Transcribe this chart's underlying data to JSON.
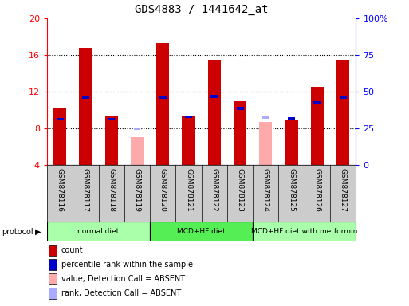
{
  "title": "GDS4883 / 1441642_at",
  "samples": [
    "GSM878116",
    "GSM878117",
    "GSM878118",
    "GSM878119",
    "GSM878120",
    "GSM878121",
    "GSM878122",
    "GSM878123",
    "GSM878124",
    "GSM878125",
    "GSM878126",
    "GSM878127"
  ],
  "count_values": [
    10.3,
    16.8,
    9.3,
    null,
    17.3,
    9.3,
    15.5,
    11.0,
    null,
    9.0,
    12.5,
    15.5
  ],
  "absent_value_values": [
    null,
    null,
    null,
    7.1,
    null,
    null,
    null,
    null,
    8.7,
    null,
    null,
    null
  ],
  "percentile_values": [
    9.0,
    11.4,
    9.0,
    null,
    11.4,
    9.3,
    11.5,
    10.2,
    null,
    9.1,
    10.8,
    11.4
  ],
  "absent_rank_values": [
    null,
    null,
    null,
    8.0,
    null,
    null,
    null,
    null,
    9.2,
    null,
    null,
    null
  ],
  "ylim_left": [
    4,
    20
  ],
  "ylim_right": [
    0,
    100
  ],
  "yticks_left": [
    4,
    8,
    12,
    16,
    20
  ],
  "yticks_right": [
    0,
    25,
    50,
    75,
    100
  ],
  "ytick_labels_right": [
    "0",
    "25",
    "50",
    "75",
    "100%"
  ],
  "bar_width": 0.5,
  "count_color": "#cc0000",
  "absent_value_color": "#ffaaaa",
  "percentile_color": "#0000cc",
  "absent_rank_color": "#aaaaff",
  "protocol_groups": [
    {
      "label": "normal diet",
      "start": 0,
      "end": 3,
      "color": "#aaffaa"
    },
    {
      "label": "MCD+HF diet",
      "start": 4,
      "end": 7,
      "color": "#55ee55"
    },
    {
      "label": "MCD+HF diet with metformin",
      "start": 8,
      "end": 11,
      "color": "#aaffaa"
    }
  ],
  "legend_items": [
    {
      "label": "count",
      "color": "#cc0000"
    },
    {
      "label": "percentile rank within the sample",
      "color": "#0000cc"
    },
    {
      "label": "value, Detection Call = ABSENT",
      "color": "#ffaaaa"
    },
    {
      "label": "rank, Detection Call = ABSENT",
      "color": "#aaaaff"
    }
  ],
  "tick_bg_color": "#cccccc"
}
